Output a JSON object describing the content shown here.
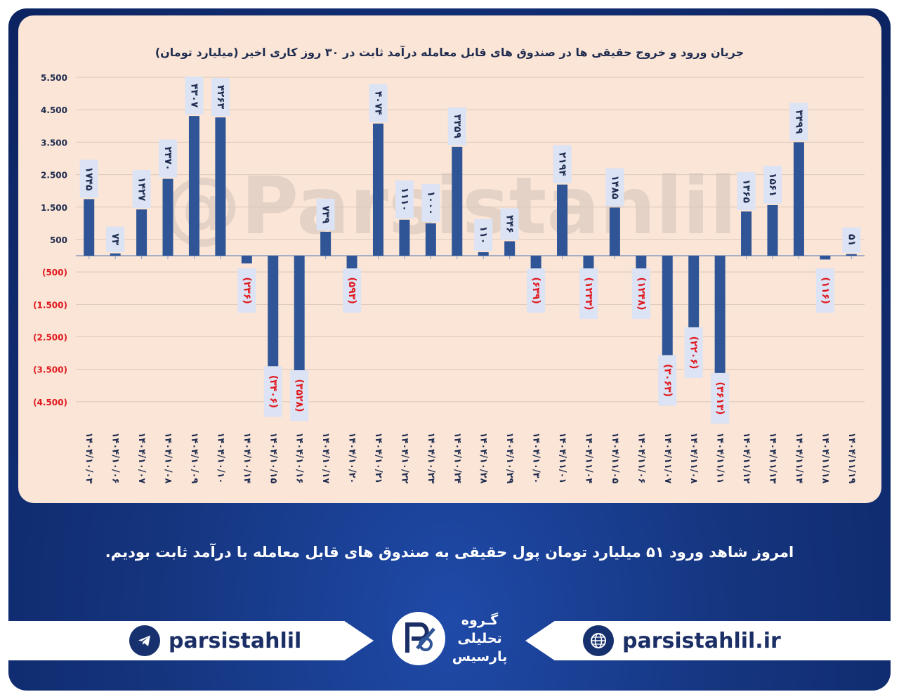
{
  "chart_data": {
    "type": "bar",
    "title": "جریان ورود و خروج حقیقی ها در صندوق های قابل معامله درآمد ثابت در ۳۰ روز کاری اخیر (میلیارد تومان)",
    "watermark": "@Parsistahlil",
    "ylim": [
      -5000,
      5500
    ],
    "ytick_values": [
      5500,
      4500,
      3500,
      2500,
      1500,
      500,
      -500,
      -1500,
      -2500,
      -3500,
      -4500
    ],
    "ytick_labels": [
      "5.500",
      "4.500",
      "3.500",
      "2.500",
      "1.500",
      "500",
      "(500)",
      "(1.500)",
      "(2.500)",
      "(3.500)",
      "(4.500)"
    ],
    "grid": true,
    "legend": "none",
    "colors": {
      "bar": "#2f5597",
      "positive_label": "#1f2c4f",
      "negative_label": "#e0191e",
      "label_box": "#dbe3f4"
    },
    "categories": [
      "۱۴۰۴/۱۰/۰۳",
      "۱۴۰۴/۱۰/۰۶",
      "۱۴۰۴/۱۰/۰۷",
      "۱۴۰۴/۱۰/۰۸",
      "۱۴۰۴/۱۰/۰۹",
      "۱۴۰۴/۱۰/۱۰",
      "۱۴۰۴/۱۰/۱۴",
      "۱۴۰۴/۱۰/۱۵",
      "۱۴۰۴/۱۰/۱۶",
      "۱۴۰۴/۱۰/۱۷",
      "۱۴۰۴/۱۰/۲۰",
      "۱۴۰۴/۱۰/۲۱",
      "۱۴۰۴/۱۰/۲۲",
      "۱۴۰۴/۱۰/۲۳",
      "۱۴۰۴/۱۰/۲۴",
      "۱۴۰۴/۱۰/۲۸",
      "۱۴۰۴/۱۰/۲۹",
      "۱۴۰۴/۱۰/۳۰",
      "۱۴۰۴/۱۱/۰۱",
      "۱۴۰۴/۱۱/۰۴",
      "۱۴۰۴/۱۱/۰۵",
      "۱۴۰۴/۱۱/۰۶",
      "۱۴۰۴/۱۱/۰۷",
      "۱۴۰۴/۱۱/۰۸",
      "۱۴۰۴/۱۱/۱۱",
      "۱۴۰۴/۱۱/۱۲",
      "۱۴۰۴/۱۱/۱۳",
      "۱۴۰۴/۱۱/۱۴",
      "۱۴۰۴/۱۱/۱۸",
      "۱۴۰۴/۱۱/۱۹"
    ],
    "values": [
      1745,
      73,
      1427,
      2370,
      4307,
      4263,
      -236,
      -3406,
      -3528,
      739,
      -593,
      4074,
      1110,
      1000,
      3359,
      110,
      446,
      -639,
      2194,
      -1233,
      1485,
      -1248,
      -3063,
      -2206,
      -3613,
      1365,
      1561,
      3499,
      -116,
      51
    ],
    "data_labels": [
      "۱۷۴۵",
      "۷۳",
      "۱۴۲۷",
      "۲۳۷۰",
      "۴۳۰۷",
      "۴۲۶۳",
      "(۲۳۶)",
      "(۳۴۰۶)",
      "(۳۵۲۸)",
      "۷۳۹",
      "(۵۹۳)",
      "۴۰۷۴",
      "۱۱۱۰",
      "۱۰۰۰",
      "۳۳۵۹",
      "۱۱۰",
      "۴۴۶",
      "(۶۳۹)",
      "۲۱۹۴",
      "(۱۲۳۳)",
      "۱۴۸۵",
      "(۱۲۴۸)",
      "(۳۰۶۳)",
      "(۲۲۰۶)",
      "(۳۶۱۳)",
      "۱۳۶۵",
      "۱۵۶۱",
      "۳۴۹۹",
      "(۱۱۶)",
      "۵۱"
    ]
  },
  "caption": "امروز شاهد ورود ۵۱ میلیارد تومان پول حقیقی به صندوق های قابل معامله با درآمد ثابت بودیم.",
  "footer": {
    "telegram_handle": "parsistahlil",
    "website": "parsistahlil.ir",
    "telegram_icon": "telegram-icon",
    "web_icon": "globe-icon",
    "logo_line1": "گـروه",
    "logo_line2": "تحلیلی",
    "logo_line3": "پارسیس"
  }
}
